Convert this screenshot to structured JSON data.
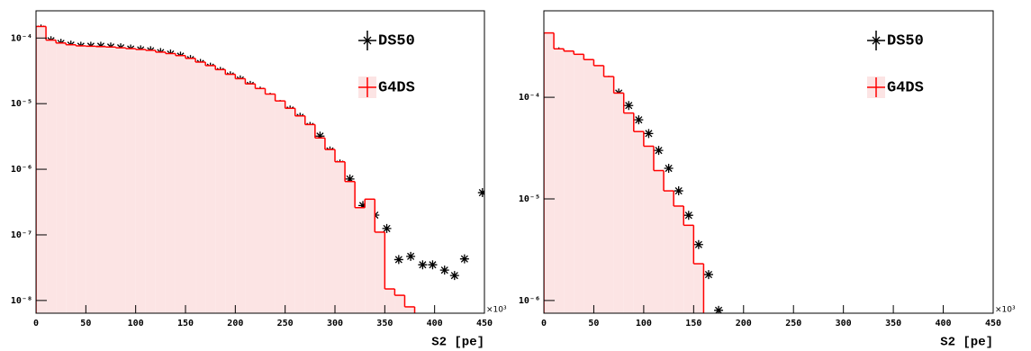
{
  "chart_data": [
    {
      "type": "histogram",
      "x_label": "S2 [pe]",
      "x_multiplier": "×10³",
      "log_y": true,
      "legend": "upper right",
      "xlim": [
        0,
        450
      ],
      "xticks": [
        0,
        50,
        100,
        150,
        200,
        250,
        300,
        350,
        400,
        450
      ],
      "ylim": [
        6.4e-09,
        0.00026
      ],
      "yticks": [
        {
          "value": 1e-08,
          "label": "10⁻⁸"
        },
        {
          "value": 1e-07,
          "label": "10⁻⁷"
        },
        {
          "value": 1e-06,
          "label": "10⁻⁶"
        },
        {
          "value": 1e-05,
          "label": "10⁻⁵"
        },
        {
          "value": 0.0001,
          "label": "10⁻⁴"
        }
      ],
      "series": [
        {
          "name": "DS50",
          "color": "#000000",
          "x": [
            5,
            15,
            25,
            35,
            45,
            55,
            65,
            75,
            85,
            95,
            105,
            115,
            125,
            135,
            145,
            155,
            165,
            175,
            185,
            195,
            205,
            215,
            225,
            235,
            245,
            255,
            265,
            275,
            285,
            295,
            305,
            315,
            328,
            340,
            352,
            364,
            376,
            388,
            398,
            410,
            420,
            430,
            448
          ],
          "values": [
            0.000137,
            9.1e-05,
            8.3e-05,
            7.8e-05,
            7.5e-05,
            7.5e-05,
            7.5e-05,
            7.3e-05,
            7.1e-05,
            6.8e-05,
            6.6e-05,
            6.4e-05,
            6e-05,
            5.7e-05,
            5.3e-05,
            4.7e-05,
            4.1e-05,
            3.6e-05,
            3.1e-05,
            2.65e-05,
            2.3e-05,
            1.9e-05,
            1.55e-05,
            1.25e-05,
            9.7e-06,
            8e-06,
            6.2e-06,
            4.5e-06,
            3.2e-06,
            1.9e-06,
            1.2e-06,
            7.1e-07,
            2.8e-07,
            2e-07,
            1.25e-07,
            4.2e-08,
            4.7e-08,
            3.5e-08,
            3.5e-08,
            2.9e-08,
            2.4e-08,
            4.3e-08,
            4.4e-07
          ]
        },
        {
          "name": "G4DS",
          "color": "#ff0000",
          "fill": "#fce4e4",
          "bins": [
            0,
            10,
            20,
            30,
            40,
            50,
            60,
            70,
            80,
            90,
            100,
            110,
            120,
            130,
            140,
            150,
            160,
            170,
            180,
            190,
            200,
            210,
            220,
            230,
            240,
            250,
            260,
            270,
            280,
            290,
            300,
            310,
            320,
            330,
            340,
            350,
            360,
            370,
            380
          ],
          "values": [
            0.00015,
            9.3e-05,
            8.4e-05,
            7.9e-05,
            7.6e-05,
            7.5e-05,
            7.4e-05,
            7.3e-05,
            7.1e-05,
            6.9e-05,
            6.7e-05,
            6.5e-05,
            6.1e-05,
            5.8e-05,
            5.4e-05,
            4.9e-05,
            4.3e-05,
            3.8e-05,
            3.3e-05,
            2.8e-05,
            2.4e-05,
            2e-05,
            1.7e-05,
            1.4e-05,
            1.1e-05,
            8.5e-06,
            6.5e-06,
            4.8e-06,
            3e-06,
            2e-06,
            1.3e-06,
            6.5e-07,
            2.6e-07,
            3.5e-07,
            1.1e-07,
            1.5e-08,
            1.2e-08,
            8e-09
          ]
        }
      ]
    },
    {
      "type": "histogram",
      "x_label": "S2 [pe]",
      "x_multiplier": "×10³",
      "log_y": true,
      "legend": "upper right",
      "xlim": [
        0,
        450
      ],
      "xticks": [
        0,
        50,
        100,
        150,
        200,
        250,
        300,
        350,
        400,
        450
      ],
      "ylim": [
        7.5e-07,
        0.00071
      ],
      "yticks": [
        {
          "value": 1e-06,
          "label": "10⁻⁶"
        },
        {
          "value": 1e-05,
          "label": "10⁻⁵"
        },
        {
          "value": 0.0001,
          "label": "10⁻⁴"
        }
      ],
      "series": [
        {
          "name": "DS50",
          "color": "#000000",
          "x": [
            5,
            15,
            25,
            35,
            45,
            55,
            65,
            75,
            85,
            95,
            105,
            115,
            125,
            135,
            145,
            155,
            165,
            175
          ],
          "values": [
            0.00038,
            0.00028,
            0.000255,
            0.00023,
            0.0002,
            0.00018,
            0.000147,
            0.00011,
            8.3e-05,
            6e-05,
            4.4e-05,
            3e-05,
            2e-05,
            1.2e-05,
            6.9e-06,
            3.55e-06,
            1.8e-06,
            8e-07
          ]
        },
        {
          "name": "G4DS",
          "color": "#ff0000",
          "fill": "#fce4e4",
          "bins": [
            0,
            10,
            20,
            30,
            40,
            50,
            60,
            70,
            80,
            90,
            100,
            110,
            120,
            130,
            140,
            150,
            160
          ],
          "values": [
            0.00043,
            0.0003,
            0.000285,
            0.000265,
            0.000235,
            0.000205,
            0.00016,
            0.00011,
            7e-05,
            4.6e-05,
            3.3e-05,
            1.9e-05,
            1.2e-05,
            8.5e-06,
            5.5e-06,
            2.3e-06
          ]
        }
      ]
    }
  ]
}
